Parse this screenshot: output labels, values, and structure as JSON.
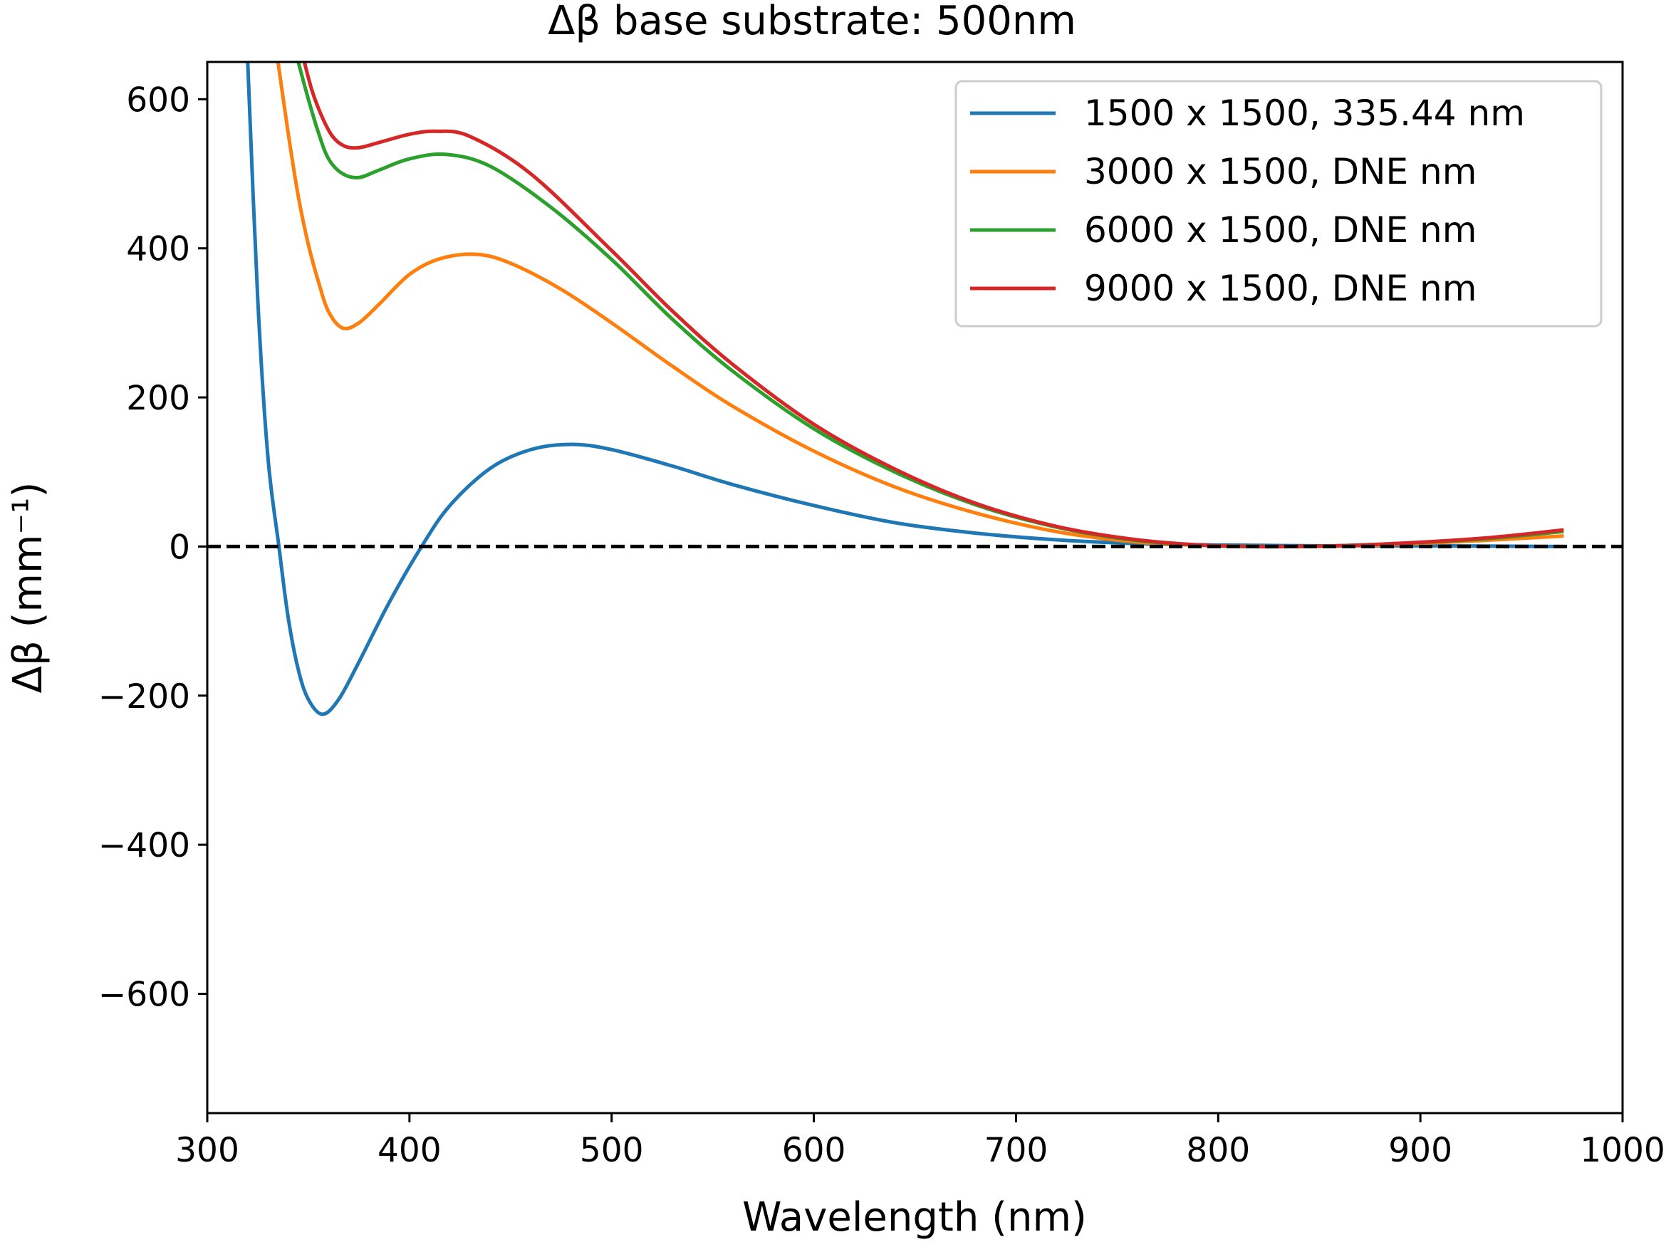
{
  "chart_data": {
    "type": "line",
    "title": "Δβ base substrate: 500nm",
    "xlabel": "Wavelength (nm)",
    "ylabel": "Δβ (mm⁻¹)",
    "xlim": [
      300,
      1000
    ],
    "ylim": [
      -760,
      650
    ],
    "xticks": [
      300,
      400,
      500,
      600,
      700,
      800,
      900,
      1000
    ],
    "xtick_labels": [
      "300",
      "400",
      "500",
      "600",
      "700",
      "800",
      "900",
      "1000"
    ],
    "yticks": [
      -600,
      -400,
      -200,
      0,
      200,
      400,
      600
    ],
    "ytick_labels": [
      "−600",
      "−400",
      "−200",
      "0",
      "200",
      "400",
      "600"
    ],
    "grid": false,
    "legend_position": "top-right",
    "reference_line": {
      "y": 0,
      "style": "dashed",
      "color": "#000000"
    },
    "series": [
      {
        "name": "1500 x 1500,  335.44 nm",
        "color": "#1f77b4",
        "x": [
          320,
          325,
          330,
          335.44,
          340,
          345,
          350,
          357,
          365,
          375,
          390,
          406,
          420,
          440,
          460,
          480,
          500,
          530,
          560,
          600,
          640,
          680,
          720,
          760,
          800,
          850,
          900,
          970
        ],
        "y": [
          650,
          330,
          120,
          0,
          -95,
          -165,
          -205,
          -225,
          -205,
          -155,
          -75,
          0,
          55,
          105,
          130,
          137,
          130,
          108,
          83,
          55,
          32,
          18,
          9,
          4,
          2,
          1,
          1,
          0
        ]
      },
      {
        "name": "3000 x 1500,  DNE nm",
        "color": "#ff7f0e",
        "x": [
          335,
          340,
          345,
          350,
          355,
          360,
          367,
          375,
          385,
          400,
          415,
          433,
          450,
          475,
          500,
          530,
          560,
          600,
          640,
          680,
          720,
          760,
          800,
          840,
          880,
          930,
          970
        ],
        "y": [
          650,
          555,
          470,
          405,
          355,
          315,
          293,
          300,
          325,
          365,
          386,
          392,
          380,
          345,
          300,
          242,
          188,
          128,
          80,
          45,
          20,
          6,
          1,
          0,
          2,
          8,
          14
        ]
      },
      {
        "name": "6000 x 1500,  DNE nm",
        "color": "#2ca02c",
        "x": [
          345,
          350,
          355,
          360,
          367,
          375,
          385,
          400,
          418,
          440,
          470,
          500,
          530,
          560,
          600,
          640,
          680,
          720,
          760,
          800,
          840,
          880,
          930,
          970
        ],
        "y": [
          650,
          600,
          555,
          520,
          500,
          495,
          505,
          520,
          526,
          510,
          455,
          385,
          305,
          235,
          158,
          100,
          56,
          26,
          8,
          1,
          0,
          3,
          10,
          20
        ]
      },
      {
        "name": "9000 x 1500,  DNE nm",
        "color": "#d62728",
        "x": [
          348,
          352,
          357,
          362,
          368,
          375,
          385,
          400,
          413,
          430,
          460,
          500,
          530,
          560,
          600,
          640,
          680,
          720,
          760,
          800,
          840,
          880,
          930,
          970
        ],
        "y": [
          650,
          610,
          575,
          550,
          537,
          535,
          542,
          553,
          557,
          550,
          500,
          397,
          316,
          244,
          164,
          104,
          58,
          27,
          9,
          1,
          0,
          3,
          11,
          22
        ]
      }
    ]
  }
}
